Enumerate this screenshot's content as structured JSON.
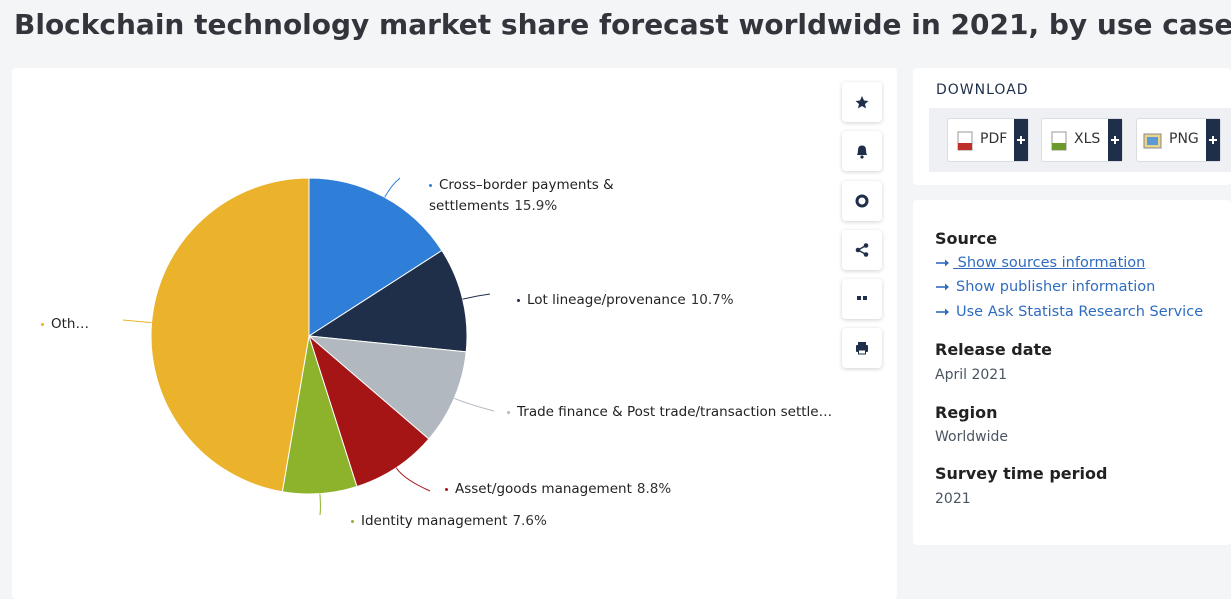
{
  "page": {
    "title": "Blockchain technology market share forecast worldwide in 2021, by use case",
    "download": {
      "heading": "DOWNLOAD",
      "buttons": [
        "PDF",
        "XLS",
        "PNG"
      ]
    },
    "info": {
      "source_heading": "Source",
      "source_links": [
        " Show sources information",
        "Show publisher information",
        "Use Ask Statista Research Service"
      ],
      "sections": [
        {
          "heading": "Release date",
          "value": "April 2021"
        },
        {
          "heading": "Region",
          "value": "Worldwide"
        },
        {
          "heading": "Survey time period",
          "value": "2021"
        }
      ]
    }
  },
  "chart_data": {
    "type": "pie",
    "categories": [
      "Cross–border payments & settlements",
      "Lot lineage/provenance",
      "Trade finance & Post trade/transaction settle…",
      "Asset/goods management",
      "Identity management",
      "Oth…"
    ],
    "values": [
      15.9,
      10.7,
      9.7,
      8.8,
      7.6,
      47.3
    ],
    "value_labels": [
      "15.9%",
      "10.7%",
      null,
      "8.8%",
      "7.6%",
      null
    ],
    "colors": [
      "#2f7ed8",
      "#1f2f4a",
      "#b2b8bf",
      "#a51515",
      "#8db32c",
      "#ebb22b"
    ]
  }
}
